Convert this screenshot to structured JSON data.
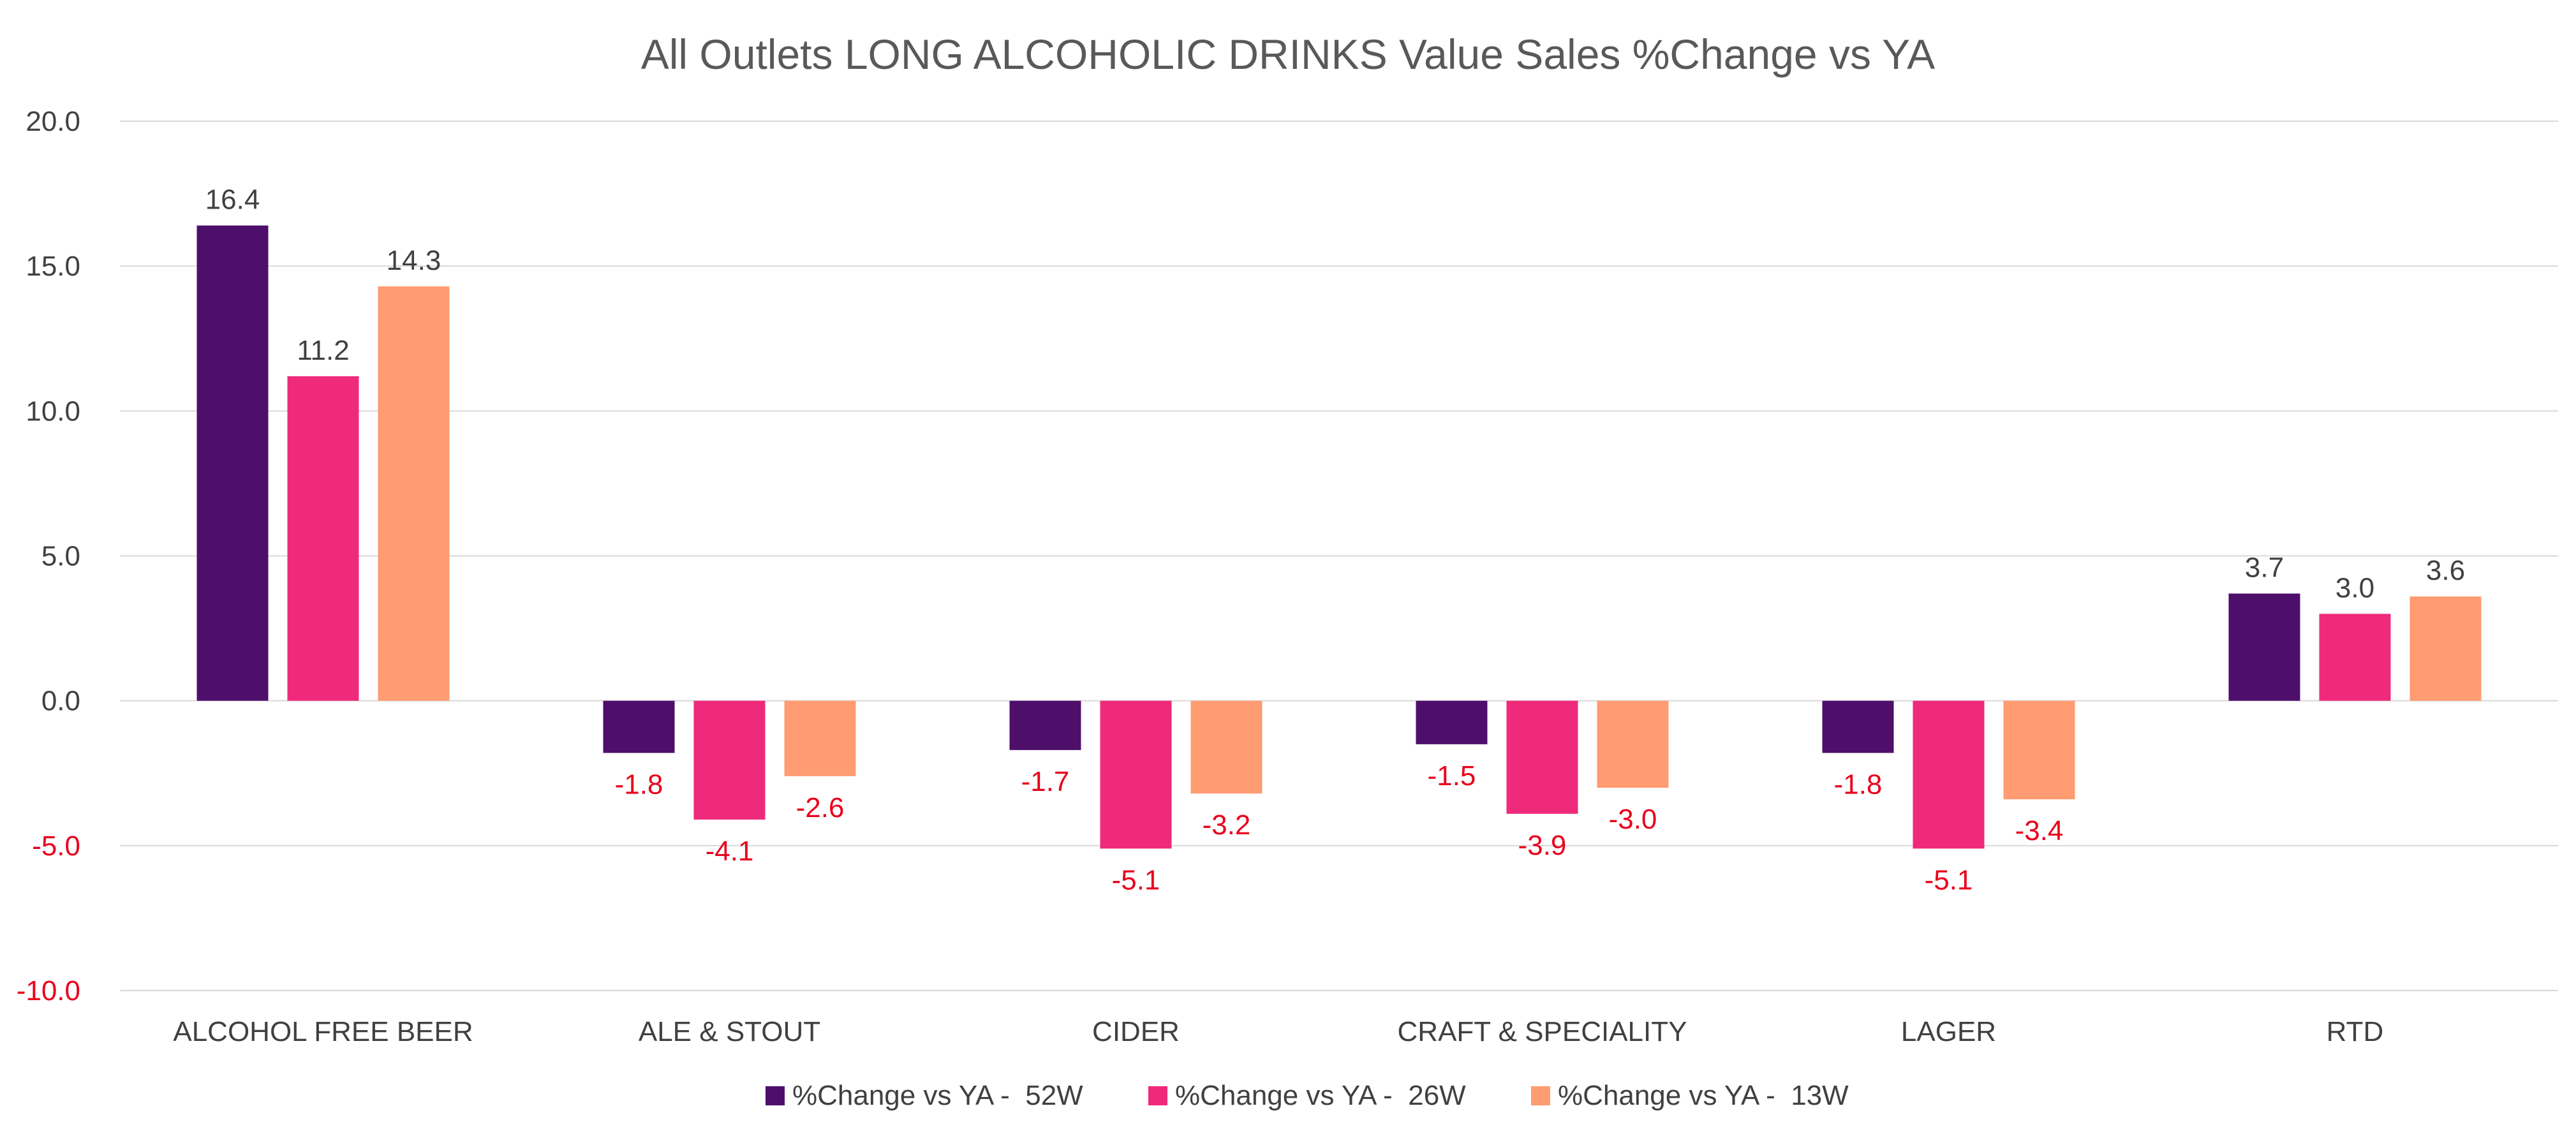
{
  "chart_data": {
    "type": "bar",
    "title": "All Outlets LONG ALCOHOLIC DRINKS Value Sales %Change vs YA",
    "xlabel": "",
    "ylabel": "",
    "ylim": [
      -10.0,
      20.0
    ],
    "yticks": [
      "20.0",
      "15.0",
      "10.0",
      "5.0",
      "0.0",
      "-5.0",
      "-10.0"
    ],
    "ytick_values": [
      20,
      15,
      10,
      5,
      0,
      -5,
      -10
    ],
    "grid": true,
    "legend_position": "bottom",
    "categories": [
      "ALCOHOL FREE BEER",
      "ALE & STOUT",
      "CIDER",
      "CRAFT & SPECIALITY",
      "LAGER",
      "RTD"
    ],
    "series": [
      {
        "name": "%Change vs YA -  52W",
        "color": "#4e0f6b",
        "values": [
          16.4,
          -1.8,
          -1.7,
          -1.5,
          -1.8,
          3.7
        ],
        "labels": [
          "16.4",
          "-1.8",
          "-1.7",
          "-1.5",
          "-1.8",
          "3.7"
        ]
      },
      {
        "name": "%Change vs YA -  26W",
        "color": "#ef2a7a",
        "values": [
          11.2,
          -4.1,
          -5.1,
          -3.9,
          -5.1,
          3.0
        ],
        "labels": [
          "11.2",
          "-4.1",
          "-5.1",
          "-3.9",
          "-5.1",
          "3.0"
        ]
      },
      {
        "name": "%Change vs YA -  13W",
        "color": "#ff9c72",
        "values": [
          14.3,
          -2.6,
          -3.2,
          -3.0,
          -3.4,
          3.6
        ],
        "labels": [
          "14.3",
          "-2.6",
          "-3.2",
          "-3.0",
          "-3.4",
          "3.6"
        ]
      }
    ],
    "colors": {
      "positive_label": "#404040",
      "negative_label": "#e8001c",
      "negative_tick": "#e8001c",
      "positive_tick": "#404040",
      "gridline": "#d9d9d9",
      "title": "#595959"
    }
  }
}
